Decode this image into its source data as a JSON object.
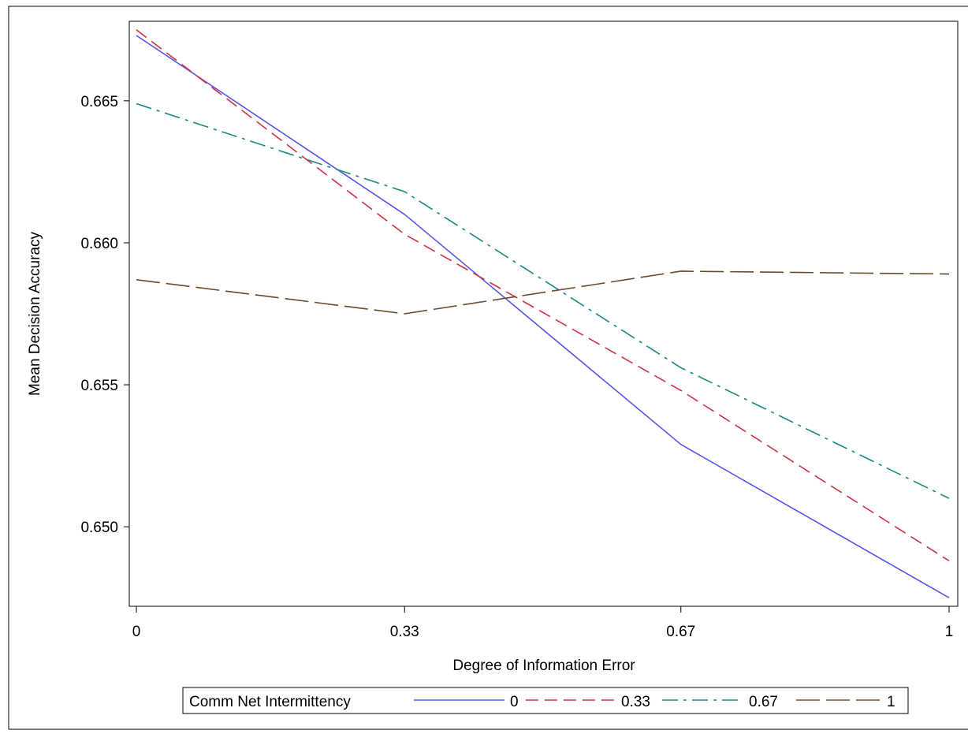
{
  "chart_data": {
    "type": "line",
    "xlabel": "Degree of Information Error",
    "ylabel": "Mean Decision Accuracy",
    "x": [
      0,
      0.33,
      0.67,
      1
    ],
    "x_tick_labels": [
      "0",
      "0.33",
      "0.67",
      "1"
    ],
    "ylim": [
      0.6472,
      0.6678
    ],
    "y_ticks": [
      0.65,
      0.655,
      0.66,
      0.665
    ],
    "y_tick_labels": [
      "0.650",
      "0.655",
      "0.660",
      "0.665"
    ],
    "grid": false,
    "legend": {
      "title": "Comm Net Intermittency",
      "placement": "bottom"
    },
    "series": [
      {
        "name": "0",
        "color": "#5555ee",
        "style": "solid",
        "values": [
          0.6673,
          0.661,
          0.6529,
          0.6475
        ]
      },
      {
        "name": "0.33",
        "color": "#cc3344",
        "style": "dash",
        "values": [
          0.6675,
          0.6603,
          0.6548,
          0.6488
        ]
      },
      {
        "name": "0.67",
        "color": "#1a8a80",
        "style": "dashdot",
        "values": [
          0.6649,
          0.6618,
          0.6556,
          0.651
        ]
      },
      {
        "name": "1",
        "color": "#6b4a2a",
        "style": "longdash",
        "values": [
          0.6587,
          0.6575,
          0.659,
          0.6589
        ]
      }
    ]
  }
}
